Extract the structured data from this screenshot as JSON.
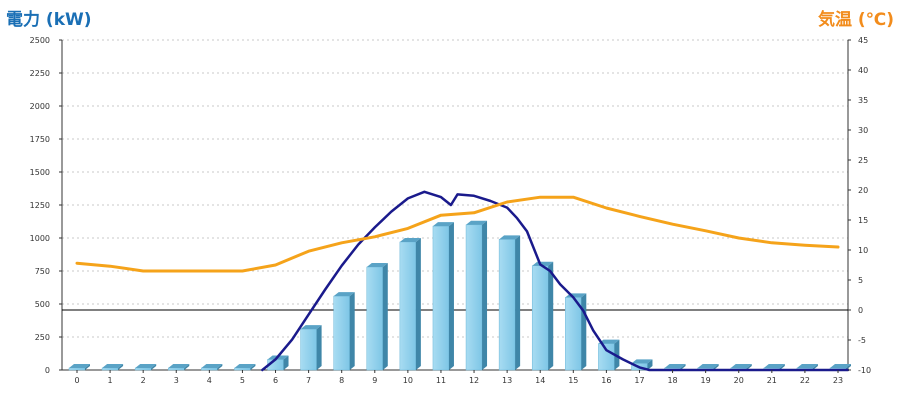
{
  "chart_data": {
    "type": "bar+line",
    "left_axis": {
      "label": "電力 (kW)",
      "min": 0,
      "max": 2500,
      "ticks": [
        0,
        250,
        500,
        750,
        1000,
        1250,
        1500,
        1750,
        2000,
        2250,
        2500
      ]
    },
    "right_axis": {
      "label": "気温 (℃)",
      "min": -10,
      "max": 45,
      "ticks": [
        -10,
        -5,
        0,
        5,
        10,
        15,
        20,
        25,
        30,
        35,
        40,
        45
      ]
    },
    "categories": [
      "0",
      "1",
      "2",
      "3",
      "4",
      "5",
      "6",
      "7",
      "8",
      "9",
      "10",
      "11",
      "12",
      "13",
      "14",
      "15",
      "16",
      "17",
      "18",
      "19",
      "20",
      "21",
      "22",
      "23"
    ],
    "grid": "horizontal-dashed",
    "series": [
      {
        "type": "bar",
        "axis": "left",
        "color": "#87ceeb",
        "values": [
          15,
          15,
          15,
          15,
          15,
          15,
          80,
          310,
          560,
          780,
          970,
          1090,
          1100,
          990,
          790,
          550,
          200,
          50,
          15,
          15,
          15,
          15,
          15,
          15
        ]
      },
      {
        "type": "line",
        "axis": "left",
        "color": "#1a1a8c",
        "x": [
          5.6,
          6.0,
          6.5,
          7.0,
          7.5,
          8.0,
          8.5,
          9.0,
          9.5,
          10.0,
          10.5,
          11.0,
          11.3,
          11.5,
          12.0,
          12.5,
          13.0,
          13.3,
          13.6,
          14.0,
          14.3,
          14.6,
          15.0,
          15.3,
          15.6,
          16.0,
          16.5,
          17.0,
          17.3,
          18,
          19,
          20,
          21,
          22,
          23.3
        ],
        "values": [
          0,
          80,
          230,
          420,
          610,
          790,
          950,
          1080,
          1200,
          1300,
          1350,
          1310,
          1250,
          1330,
          1320,
          1280,
          1230,
          1150,
          1050,
          800,
          750,
          650,
          550,
          450,
          300,
          150,
          80,
          20,
          0,
          0,
          0,
          0,
          0,
          0,
          0
        ]
      },
      {
        "type": "line",
        "axis": "right",
        "color": "#f5a31a",
        "values": [
          7.8,
          7.3,
          6.5,
          6.5,
          6.5,
          6.5,
          7.5,
          9.8,
          11.2,
          12.2,
          13.6,
          15.8,
          16.2,
          18.0,
          18.8,
          18.8,
          17.0,
          15.6,
          14.3,
          13.2,
          12.0,
          11.2,
          10.8,
          10.5
        ]
      }
    ]
  }
}
